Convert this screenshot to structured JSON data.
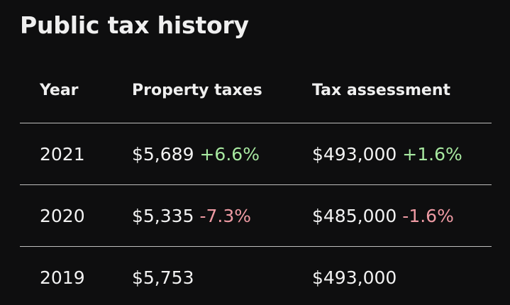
{
  "title": "Public tax history",
  "columns": {
    "year": "Year",
    "property_taxes": "Property taxes",
    "tax_assessment": "Tax assessment"
  },
  "rows": [
    {
      "year": "2021",
      "tax": "$5,689",
      "tax_change": "+6.6%",
      "tax_dir": "up",
      "assessment": "$493,000",
      "assessment_change": "+1.6%",
      "assessment_dir": "up"
    },
    {
      "year": "2020",
      "tax": "$5,335",
      "tax_change": "-7.3%",
      "tax_dir": "down",
      "assessment": "$485,000",
      "assessment_change": "-1.6%",
      "assessment_dir": "down"
    },
    {
      "year": "2019",
      "tax": "$5,753",
      "tax_change": "",
      "tax_dir": "",
      "assessment": "$493,000",
      "assessment_change": "",
      "assessment_dir": ""
    }
  ],
  "colors": {
    "background": "#0e0e0f",
    "increase": "#a7e8a0",
    "decrease": "#ee9aa3",
    "divider": "#bdbdbd"
  }
}
